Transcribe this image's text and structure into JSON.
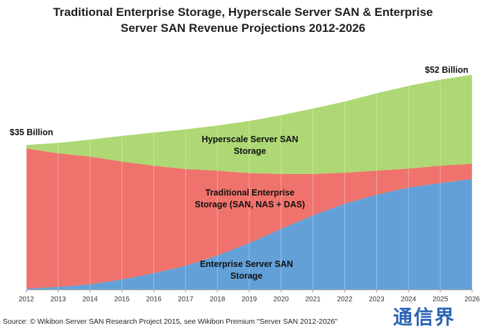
{
  "chart_data": {
    "type": "stacked_area",
    "title": "Traditional Enterprise Storage, Hyperscale Server SAN & Enterprise Server SAN Revenue Projections 2012-2026",
    "categories": [
      "2012",
      "2013",
      "2014",
      "2015",
      "2016",
      "2017",
      "2018",
      "2019",
      "2020",
      "2021",
      "2022",
      "2023",
      "2024",
      "2025",
      "2026"
    ],
    "series": [
      {
        "name": "Enterprise Server SAN Storage",
        "color": "#5b9bd5",
        "values": [
          0.3,
          0.7,
          1.3,
          2.5,
          4,
          5.8,
          8.3,
          11.3,
          14.7,
          18,
          20.8,
          23,
          24.7,
          25.8,
          26.8
        ]
      },
      {
        "name": "Traditional Enterprise Storage (SAN, NAS + DAS)",
        "color": "#ee6b64",
        "values": [
          33.9,
          32.3,
          30.9,
          28.5,
          26,
          23.4,
          20.5,
          16.9,
          13.3,
          10,
          7.5,
          5.8,
          4.6,
          4.2,
          3.7
        ]
      },
      {
        "name": "Hyperscale Server SAN Storage",
        "color": "#a9d66b",
        "values": [
          0.8,
          2.5,
          4.1,
          6.2,
          8,
          9.6,
          10.9,
          12.6,
          14.2,
          15.8,
          17.2,
          18.7,
          20,
          20.8,
          21.5
        ]
      }
    ],
    "annotations": [
      "$35 Billion",
      "$52 Billion"
    ],
    "ylim": [
      0,
      60
    ],
    "grid": true,
    "source": "Source: © Wikibon Server SAN Research Project 2015, see  Wikibon Premium \"Server SAN 2012-2026\"",
    "watermark": "通信界"
  }
}
